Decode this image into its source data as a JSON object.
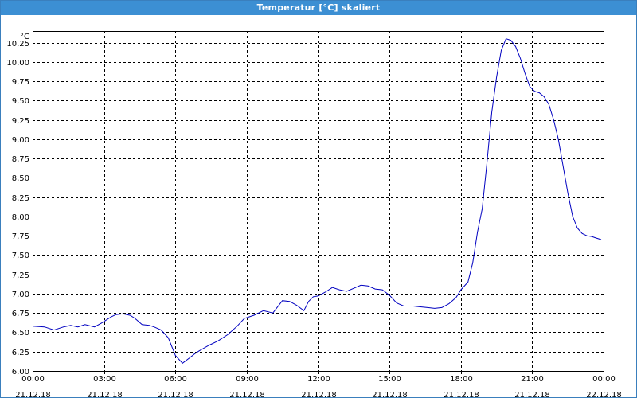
{
  "window": {
    "title": "Temperatur [°C] skaliert"
  },
  "chart_data": {
    "type": "line",
    "title": "Temperatur [°C] skaliert",
    "ylabel": "°C",
    "xlabel": "",
    "ylim": [
      6.0,
      10.4
    ],
    "xlim_hours": [
      0,
      24
    ],
    "grid": true,
    "grid_style": "dashed",
    "line_color": "#0000c0",
    "y_ticks": [
      "6,00",
      "6,25",
      "6,50",
      "6,75",
      "7,00",
      "7,25",
      "7,50",
      "7,75",
      "8,00",
      "8,25",
      "8,50",
      "8,75",
      "9,00",
      "9,25",
      "9,50",
      "9,75",
      "10,00",
      "10,25"
    ],
    "x_ticks": [
      {
        "time": "00:00",
        "date": "21.12.18"
      },
      {
        "time": "03:00",
        "date": "21.12.18"
      },
      {
        "time": "06:00",
        "date": "21.12.18"
      },
      {
        "time": "09:00",
        "date": "21.12.18"
      },
      {
        "time": "12:00",
        "date": "21.12.18"
      },
      {
        "time": "15:00",
        "date": "21.12.18"
      },
      {
        "time": "18:00",
        "date": "21.12.18"
      },
      {
        "time": "21:00",
        "date": "21.12.18"
      },
      {
        "time": "00:00",
        "date": "22.12.18"
      }
    ],
    "series": [
      {
        "x": [
          0,
          0.5,
          0.9,
          1.3,
          1.6,
          1.9,
          2.2,
          2.6,
          2.9,
          3.3,
          3.5,
          3.8,
          4.1,
          4.3,
          4.6,
          4.9,
          5.1,
          5.4,
          5.7,
          6,
          6.3,
          6.6,
          6.8,
          7,
          7.4,
          7.8,
          8.2,
          8.6,
          8.9,
          9.3,
          9.7,
          10.1,
          10.5,
          10.8,
          11.1,
          11.4,
          11.6,
          11.8,
          12,
          12.3,
          12.6,
          12.9,
          13.2,
          13.5,
          13.8,
          14.1,
          14.4,
          14.7,
          15,
          15.3,
          15.6,
          16,
          16.3,
          16.6,
          16.9,
          17.2,
          17.5,
          17.8,
          18,
          18.3,
          18.5,
          18.7,
          18.9,
          19.1,
          19.3,
          19.5,
          19.7,
          19.9,
          20.1,
          20.3,
          20.5,
          20.7,
          20.9,
          21.1,
          21.3,
          21.5,
          21.7,
          21.9,
          22.1,
          22.3,
          22.5,
          22.7,
          22.9,
          23.1,
          23.3,
          23.5,
          23.7,
          23.9
        ],
        "y": [
          6.58,
          6.57,
          6.53,
          6.57,
          6.59,
          6.57,
          6.6,
          6.57,
          6.62,
          6.7,
          6.73,
          6.74,
          6.72,
          6.68,
          6.6,
          6.59,
          6.57,
          6.53,
          6.43,
          6.2,
          6.1,
          6.17,
          6.22,
          6.26,
          6.33,
          6.39,
          6.47,
          6.58,
          6.68,
          6.72,
          6.78,
          6.75,
          6.91,
          6.9,
          6.85,
          6.78,
          6.9,
          6.96,
          6.97,
          7.02,
          7.08,
          7.05,
          7.03,
          7.07,
          7.11,
          7.1,
          7.06,
          7.05,
          6.98,
          6.88,
          6.84,
          6.84,
          6.83,
          6.82,
          6.81,
          6.82,
          6.87,
          6.95,
          7.05,
          7.15,
          7.4,
          7.8,
          8.1,
          8.7,
          9.35,
          9.8,
          10.15,
          10.3,
          10.28,
          10.2,
          10.05,
          9.85,
          9.68,
          9.62,
          9.6,
          9.55,
          9.45,
          9.25,
          9.0,
          8.65,
          8.3,
          8.0,
          7.85,
          7.78,
          7.75,
          7.74,
          7.72,
          7.7
        ]
      }
    ]
  }
}
